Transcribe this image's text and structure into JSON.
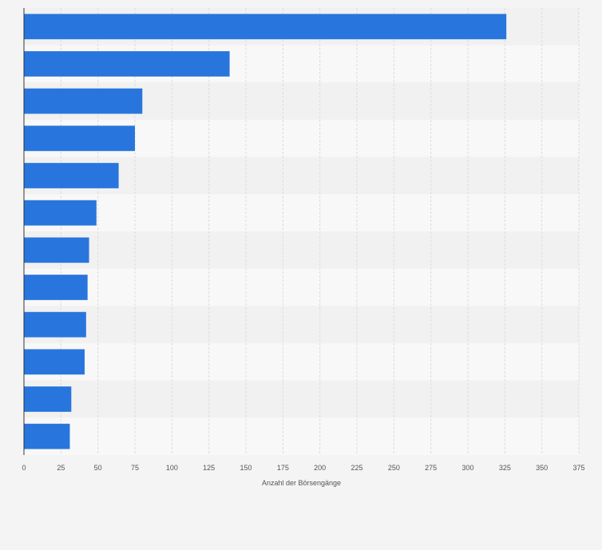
{
  "chart_data": {
    "type": "bar",
    "orientation": "horizontal",
    "categories": [
      "",
      "",
      "",
      "",
      "",
      "",
      "",
      "",
      "",
      "",
      "",
      ""
    ],
    "values": [
      326,
      139,
      80,
      75,
      64,
      49,
      44,
      43,
      42,
      41,
      32,
      31
    ],
    "xlabel": "Anzahl der Börsengänge",
    "ylabel": "",
    "xlim": [
      0,
      375
    ],
    "x_ticks": [
      0,
      25,
      50,
      75,
      100,
      125,
      150,
      175,
      200,
      225,
      250,
      275,
      300,
      325,
      350,
      375
    ],
    "grid": true,
    "legend": "none",
    "bar_color": "#2876dd"
  }
}
